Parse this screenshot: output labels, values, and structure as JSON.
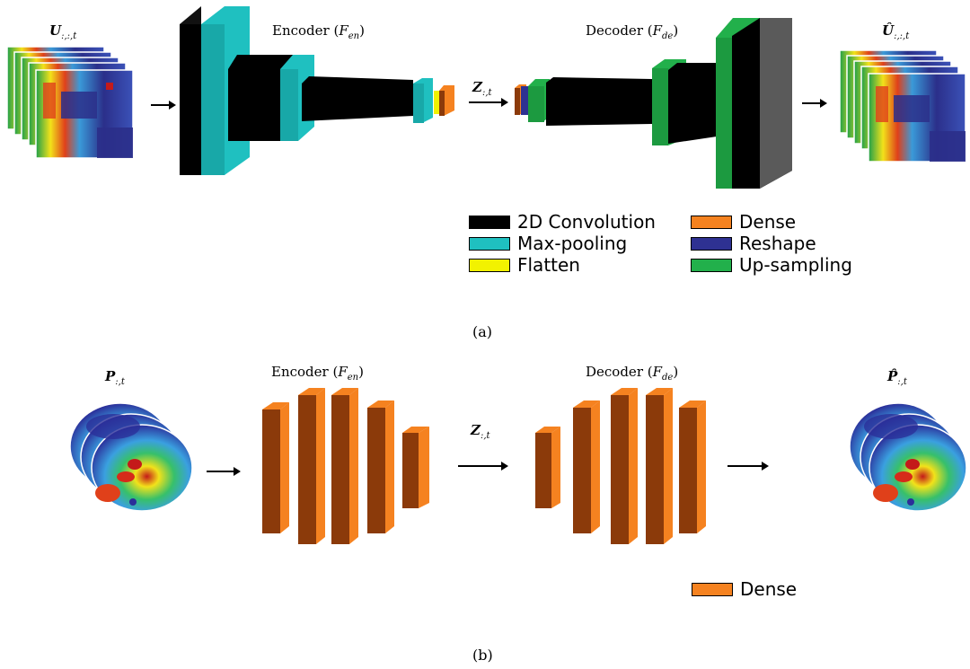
{
  "panel_a": {
    "input_label": "U",
    "input_sub": ":,:,t",
    "output_label": "Û",
    "output_sub": ":,:,t",
    "encoder_label": "Encoder (",
    "encoder_func": "F",
    "encoder_sub": "en",
    "decoder_label": "Decoder (",
    "decoder_func": "F",
    "decoder_sub": "de",
    "latent_label": "Z",
    "latent_sub": ":,t",
    "caption": "(a)",
    "legend": [
      {
        "label": "2D Convolution",
        "color": "#000000"
      },
      {
        "label": "Max-pooling",
        "color": "#1fc0c0"
      },
      {
        "label": "Flatten",
        "color": "#f2f200"
      },
      {
        "label": "Dense",
        "color": "#f58220"
      },
      {
        "label": "Reshape",
        "color": "#2e3192"
      },
      {
        "label": "Up-sampling",
        "color": "#22b04b"
      }
    ]
  },
  "panel_b": {
    "input_label": "P",
    "input_sub": ":,t",
    "output_label": "P̂",
    "output_sub": ":,t",
    "encoder_label": "Encoder (",
    "encoder_func": "F",
    "encoder_sub": "en",
    "decoder_label": "Decoder (",
    "decoder_func": "F",
    "decoder_sub": "de",
    "latent_label": "Z",
    "latent_sub": ":,t",
    "caption": "(b)",
    "legend": [
      {
        "label": "Dense",
        "color": "#f58220"
      }
    ]
  }
}
